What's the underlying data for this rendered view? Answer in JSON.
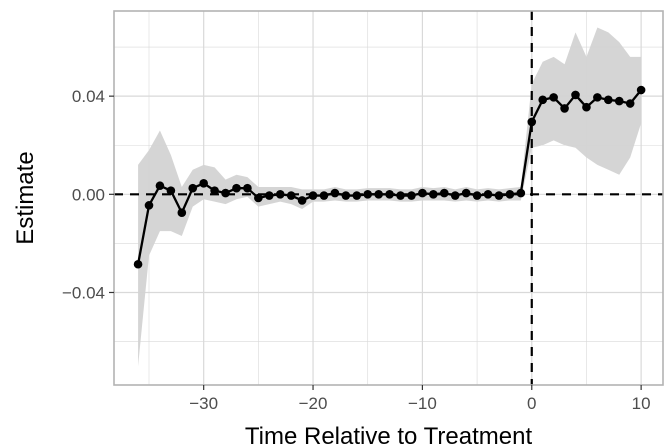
{
  "chart_data": {
    "type": "line",
    "title": "",
    "xlabel": "Time Relative to Treatment",
    "ylabel": "Estimate",
    "xlim": [
      -38.2,
      12.0
    ],
    "ylim": [
      -0.0777,
      0.0747
    ],
    "x_ticks": [
      -30,
      -20,
      -10,
      0,
      10
    ],
    "x_tick_labels": [
      "−30",
      "−20",
      "−10",
      "0",
      "10"
    ],
    "y_ticks": [
      -0.04,
      0.0,
      0.04
    ],
    "y_tick_labels": [
      "−0.04",
      "0.00",
      "0.04"
    ],
    "grid": true,
    "reference_lines": {
      "vertical_x": 0,
      "horizontal_y": 0,
      "style": "dashed"
    },
    "series": [
      {
        "x": [
          -36,
          -35,
          -34,
          -33,
          -32,
          -31,
          -30,
          -29,
          -28,
          -27,
          -26,
          -25,
          -24,
          -23,
          -22,
          -21,
          -20,
          -19,
          -18,
          -17,
          -16,
          -15,
          -14,
          -13,
          -12,
          -11,
          -10,
          -9,
          -8,
          -7,
          -6,
          -5,
          -4,
          -3,
          -2,
          -1,
          0,
          1,
          2,
          3,
          4,
          5,
          6,
          7,
          8,
          9,
          10
        ],
        "y": [
          -0.0285,
          -0.0045,
          0.0035,
          0.0015,
          -0.0075,
          0.0025,
          0.0045,
          0.0015,
          0.0005,
          0.0025,
          0.0025,
          -0.0015,
          -0.0005,
          0.0,
          -0.0005,
          -0.0025,
          -0.0005,
          -0.0005,
          0.0005,
          -0.0005,
          -0.0005,
          0.0,
          0.0,
          0.0,
          -0.0005,
          -0.0005,
          0.0005,
          0.0,
          0.0005,
          -0.0005,
          0.0005,
          -0.0005,
          0.0,
          -0.0005,
          0.0,
          0.0005,
          0.0295,
          0.0385,
          0.0395,
          0.035,
          0.0405,
          0.0355,
          0.0395,
          0.0385,
          0.038,
          0.037,
          0.0425
        ],
        "ci_lower": [
          -0.07,
          -0.025,
          -0.015,
          -0.015,
          -0.017,
          -0.005,
          -0.002,
          -0.003,
          -0.004,
          -0.002,
          -0.001,
          -0.005,
          -0.004,
          -0.003,
          -0.004,
          -0.006,
          -0.003,
          -0.003,
          -0.0025,
          -0.003,
          -0.003,
          -0.0025,
          -0.0025,
          -0.0025,
          -0.003,
          -0.003,
          -0.0025,
          -0.0025,
          -0.0025,
          -0.003,
          -0.0025,
          -0.003,
          -0.0025,
          -0.003,
          -0.0025,
          -0.0025,
          0.019,
          0.02,
          0.022,
          0.02,
          0.019,
          0.015,
          0.012,
          0.01,
          0.008,
          0.015,
          0.029
        ],
        "ci_upper": [
          0.012,
          0.018,
          0.026,
          0.016,
          0.003,
          0.01,
          0.012,
          0.011,
          0.006,
          0.008,
          0.007,
          0.003,
          0.003,
          0.003,
          0.003,
          0.002,
          0.002,
          0.002,
          0.003,
          0.002,
          0.002,
          0.0025,
          0.0025,
          0.0025,
          0.002,
          0.002,
          0.003,
          0.0025,
          0.003,
          0.002,
          0.003,
          0.002,
          0.0025,
          0.002,
          0.0025,
          0.003,
          0.045,
          0.054,
          0.056,
          0.053,
          0.066,
          0.056,
          0.068,
          0.066,
          0.062,
          0.056,
          0.056
        ]
      }
    ],
    "colors": {
      "line": "#000000",
      "ribbon": "#d3d3d3",
      "grid": "#d9d9d9",
      "frame": "#b3b3b3",
      "tick_text": "#4d4d4d"
    }
  }
}
